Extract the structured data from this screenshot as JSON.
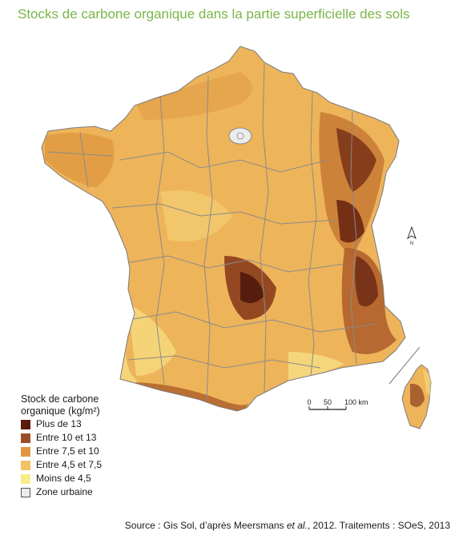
{
  "title": "Stocks de carbone organique dans la partie superficielle des sols",
  "legend": {
    "title_line1": "Stock de carbone",
    "title_line2": "organique (kg/m²)",
    "items": [
      {
        "label": "Plus de 13",
        "color": "#5a1a0e"
      },
      {
        "label": "Entre 10 et 13",
        "color": "#9a4e26"
      },
      {
        "label": "Entre 7,5 et 10",
        "color": "#e0973f"
      },
      {
        "label": "Entre 4,5 et 7,5",
        "color": "#f2c267"
      },
      {
        "label": "Moins de 4,5",
        "color": "#f8ec8c"
      },
      {
        "label": "Zone urbaine",
        "color": "#ececec"
      }
    ]
  },
  "scale": {
    "labels": [
      "0",
      "50",
      "100 km"
    ]
  },
  "north_label": "N",
  "source": {
    "prefix": "Source : Gis Sol, d’après Meersmans ",
    "italic": "et al.",
    "suffix": ", 2012. Traitements : SOeS, 2013"
  },
  "colors": {
    "title": "#7ab648",
    "borders": "#8a8a8a",
    "base_fill": "#eeb45a"
  }
}
